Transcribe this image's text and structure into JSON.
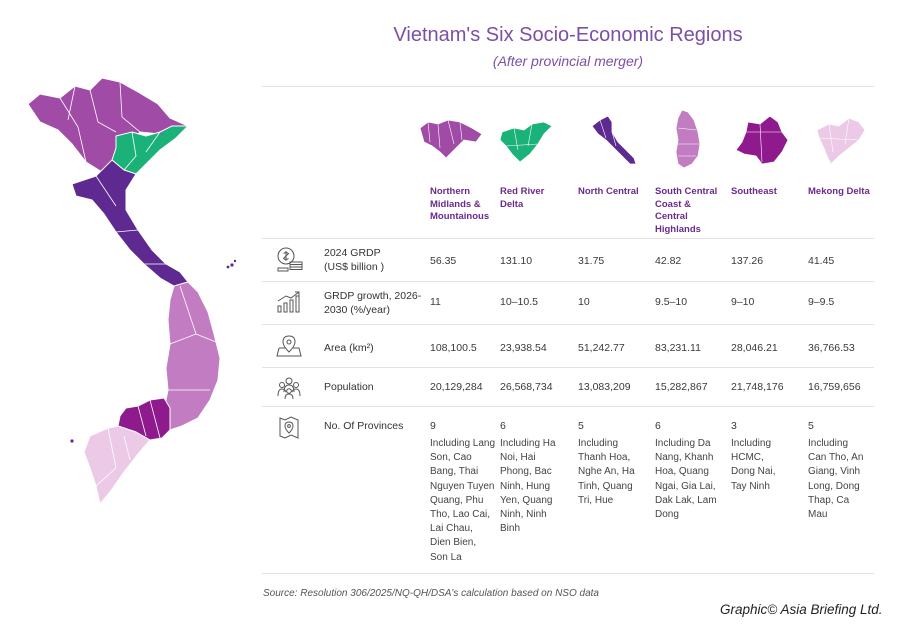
{
  "title": "Vietnam's Six Socio-Economic Regions",
  "subtitle": "(After provincial merger)",
  "colors": {
    "northern_midlands": "#a04ca7",
    "red_river_delta": "#1bb27a",
    "north_central": "#5e2990",
    "south_central": "#c17cc2",
    "southeast": "#8e1a8e",
    "mekong_delta": "#ecc9e6",
    "title": "#7b4fa6",
    "region_label": "#6a2a8f"
  },
  "regions": [
    "Northern Midlands & Mountainous",
    "Red River Delta",
    "North Central",
    "South Central Coast & Central Highlands",
    "Southeast",
    "Mekong Delta"
  ],
  "rows": [
    {
      "icon": "money-bag-icon",
      "label": "2024 GRDP (US$ billion )",
      "values": [
        "56.35",
        "131.10",
        "31.75",
        "42.82",
        "137.26",
        "41.45"
      ]
    },
    {
      "icon": "growth-chart-icon",
      "label": "GRDP growth, 2026-2030 (%/year)",
      "values": [
        "11",
        "10–10.5",
        "10",
        "9.5–10",
        "9–10",
        "9–9.5"
      ]
    },
    {
      "icon": "map-pin-area-icon",
      "label": "Area (km²)",
      "values": [
        "108,100.5",
        "23,938.54",
        "51,242.77",
        "83,231.11",
        "28,046.21",
        "36,766.53"
      ]
    },
    {
      "icon": "people-icon",
      "label": "Population",
      "values": [
        "20,129,284",
        "26,568,734",
        "13,083,209",
        "15,282,867",
        "21,748,176",
        "16,759,656"
      ]
    },
    {
      "icon": "map-marker-icon",
      "label": "No. Of Provinces",
      "values": [
        "9",
        "6",
        "5",
        "6",
        "3",
        "5"
      ]
    }
  ],
  "provinces_detail": [
    "Including Lang Son, Cao Bang, Thai Nguyen Tuyen Quang, Phu Tho, Lao Cai, Lai Chau, Dien Bien, Son La",
    "Including Ha Noi, Hai Phong, Bac Ninh, Hung Yen, Quang Ninh, Ninh Binh",
    "Including Thanh Hoa, Nghe An, Ha Tinh, Quang Tri, Hue",
    "Including Da Nang, Khanh Hoa, Quang Ngai, Gia Lai, Dak Lak, Lam Dong",
    "Including HCMC, Dong Nai, Tay Ninh",
    "Including Can Tho, An Giang, Vinh Long, Dong Thap, Ca Mau"
  ],
  "chart_data": {
    "type": "table",
    "title": "Vietnam's Six Socio-Economic Regions",
    "subtitle": "(After provincial merger)",
    "columns": [
      "Northern Midlands & Mountainous",
      "Red River Delta",
      "North Central",
      "South Central Coast & Central Highlands",
      "Southeast",
      "Mekong Delta"
    ],
    "series": [
      {
        "name": "2024 GRDP (US$ billion )",
        "values": [
          56.35,
          131.1,
          31.75,
          42.82,
          137.26,
          41.45
        ]
      },
      {
        "name": "GRDP growth, 2026-2030 (%/year)",
        "values": [
          "11",
          "10–10.5",
          "10",
          "9.5–10",
          "9–10",
          "9–9.5"
        ]
      },
      {
        "name": "Area (km²)",
        "values": [
          108100.5,
          23938.54,
          51242.77,
          83231.11,
          28046.21,
          36766.53
        ]
      },
      {
        "name": "Population",
        "values": [
          20129284,
          26568734,
          13083209,
          15282867,
          21748176,
          16759656
        ]
      },
      {
        "name": "No. Of Provinces",
        "values": [
          9,
          6,
          5,
          6,
          3,
          5
        ]
      }
    ]
  },
  "footer": {
    "source": "Source: Resolution 306/2025/NQ-QH/DSA's calculation based on NSO data",
    "credit": "Graphic© Asia Briefing Ltd."
  }
}
